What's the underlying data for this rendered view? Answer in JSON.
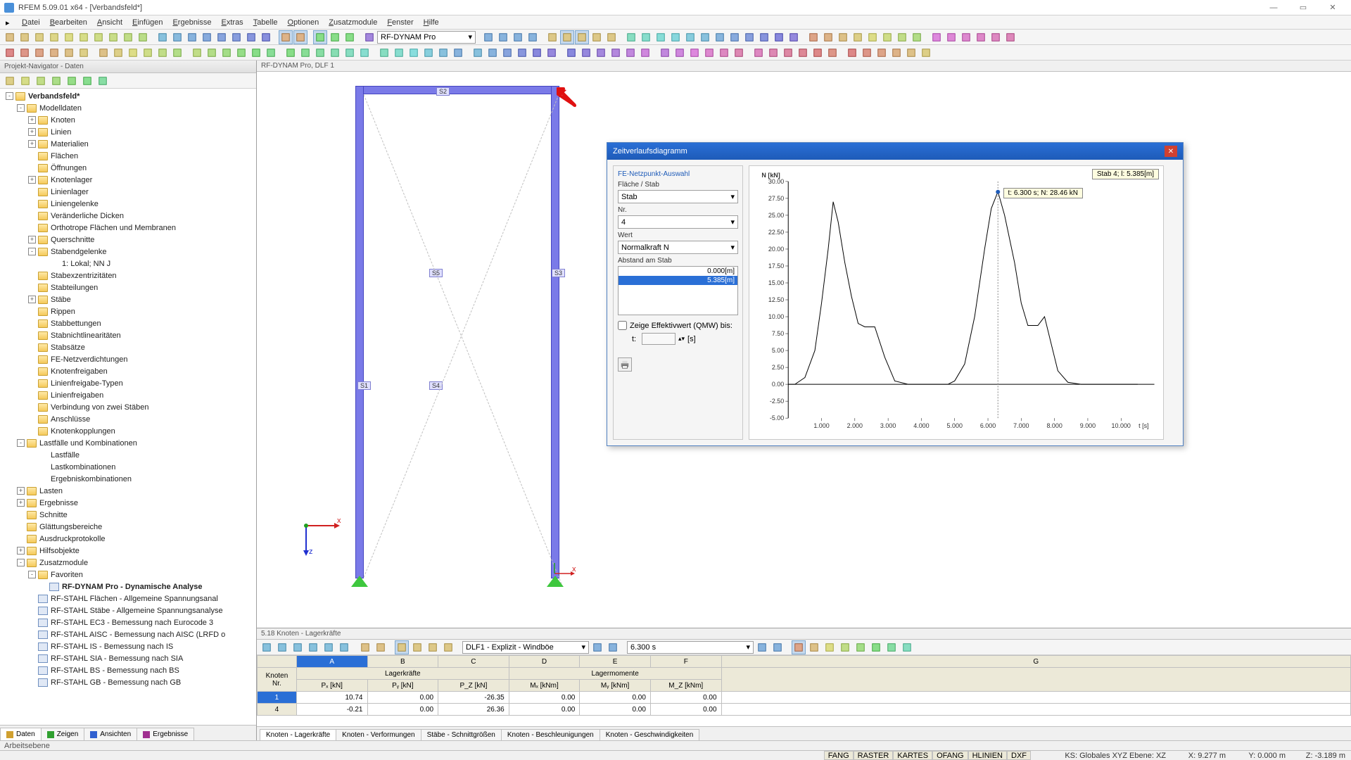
{
  "app": {
    "title": "RFEM 5.09.01 x64 - [Verbandsfeld*]"
  },
  "menu": [
    "Datei",
    "Bearbeiten",
    "Ansicht",
    "Einfügen",
    "Ergebnisse",
    "Extras",
    "Tabelle",
    "Optionen",
    "Zusatzmodule",
    "Fenster",
    "Hilfe"
  ],
  "toolbar1_combo": "RF-DYNAM Pro",
  "navigator": {
    "title": "Projekt-Navigator - Daten",
    "tabs": [
      "Daten",
      "Zeigen",
      "Ansichten",
      "Ergebnisse"
    ],
    "tree": [
      {
        "d": 0,
        "e": "-",
        "i": "f",
        "t": "Verbandsfeld*",
        "b": true
      },
      {
        "d": 1,
        "e": "-",
        "i": "f",
        "t": "Modelldaten"
      },
      {
        "d": 2,
        "e": "+",
        "i": "f",
        "t": "Knoten"
      },
      {
        "d": 2,
        "e": "+",
        "i": "f",
        "t": "Linien"
      },
      {
        "d": 2,
        "e": "+",
        "i": "f",
        "t": "Materialien"
      },
      {
        "d": 2,
        "e": "",
        "i": "f",
        "t": "Flächen"
      },
      {
        "d": 2,
        "e": "",
        "i": "f",
        "t": "Öffnungen"
      },
      {
        "d": 2,
        "e": "+",
        "i": "f",
        "t": "Knotenlager"
      },
      {
        "d": 2,
        "e": "",
        "i": "f",
        "t": "Linienlager"
      },
      {
        "d": 2,
        "e": "",
        "i": "f",
        "t": "Liniengelenke"
      },
      {
        "d": 2,
        "e": "",
        "i": "f",
        "t": "Veränderliche Dicken"
      },
      {
        "d": 2,
        "e": "",
        "i": "f",
        "t": "Orthotrope Flächen und Membranen"
      },
      {
        "d": 2,
        "e": "+",
        "i": "f",
        "t": "Querschnitte"
      },
      {
        "d": 2,
        "e": "-",
        "i": "f",
        "t": "Stabendgelenke"
      },
      {
        "d": 3,
        "e": "",
        "i": "n",
        "t": "1: Lokal; NN J"
      },
      {
        "d": 2,
        "e": "",
        "i": "f",
        "t": "Stabexzentrizitäten"
      },
      {
        "d": 2,
        "e": "",
        "i": "f",
        "t": "Stabteilungen"
      },
      {
        "d": 2,
        "e": "+",
        "i": "f",
        "t": "Stäbe"
      },
      {
        "d": 2,
        "e": "",
        "i": "f",
        "t": "Rippen"
      },
      {
        "d": 2,
        "e": "",
        "i": "f",
        "t": "Stabbettungen"
      },
      {
        "d": 2,
        "e": "",
        "i": "f",
        "t": "Stabnichtlinearitäten"
      },
      {
        "d": 2,
        "e": "",
        "i": "f",
        "t": "Stabsätze"
      },
      {
        "d": 2,
        "e": "",
        "i": "f",
        "t": "FE-Netzverdichtungen"
      },
      {
        "d": 2,
        "e": "",
        "i": "f",
        "t": "Knotenfreigaben"
      },
      {
        "d": 2,
        "e": "",
        "i": "f",
        "t": "Linienfreigabe-Typen"
      },
      {
        "d": 2,
        "e": "",
        "i": "f",
        "t": "Linienfreigaben"
      },
      {
        "d": 2,
        "e": "",
        "i": "f",
        "t": "Verbindung von zwei Stäben"
      },
      {
        "d": 2,
        "e": "",
        "i": "f",
        "t": "Anschlüsse"
      },
      {
        "d": 2,
        "e": "",
        "i": "f",
        "t": "Knotenkopplungen"
      },
      {
        "d": 1,
        "e": "-",
        "i": "f",
        "t": "Lastfälle und Kombinationen"
      },
      {
        "d": 2,
        "e": "",
        "i": "n",
        "t": "Lastfälle"
      },
      {
        "d": 2,
        "e": "",
        "i": "n",
        "t": "Lastkombinationen"
      },
      {
        "d": 2,
        "e": "",
        "i": "n",
        "t": "Ergebniskombinationen"
      },
      {
        "d": 1,
        "e": "+",
        "i": "f",
        "t": "Lasten"
      },
      {
        "d": 1,
        "e": "+",
        "i": "f",
        "t": "Ergebnisse"
      },
      {
        "d": 1,
        "e": "",
        "i": "f",
        "t": "Schnitte"
      },
      {
        "d": 1,
        "e": "",
        "i": "f",
        "t": "Glättungsbereiche"
      },
      {
        "d": 1,
        "e": "",
        "i": "f",
        "t": "Ausdruckprotokolle"
      },
      {
        "d": 1,
        "e": "+",
        "i": "f",
        "t": "Hilfsobjekte"
      },
      {
        "d": 1,
        "e": "-",
        "i": "f",
        "t": "Zusatzmodule"
      },
      {
        "d": 2,
        "e": "-",
        "i": "f",
        "t": "Favoriten"
      },
      {
        "d": 3,
        "e": "",
        "i": "m",
        "t": "RF-DYNAM Pro - Dynamische Analyse",
        "b": true
      },
      {
        "d": 2,
        "e": "",
        "i": "m",
        "t": "RF-STAHL Flächen - Allgemeine Spannungsanal"
      },
      {
        "d": 2,
        "e": "",
        "i": "m",
        "t": "RF-STAHL Stäbe - Allgemeine Spannungsanalyse"
      },
      {
        "d": 2,
        "e": "",
        "i": "m",
        "t": "RF-STAHL EC3 - Bemessung nach Eurocode 3"
      },
      {
        "d": 2,
        "e": "",
        "i": "m",
        "t": "RF-STAHL AISC - Bemessung nach AISC (LRFD o"
      },
      {
        "d": 2,
        "e": "",
        "i": "m",
        "t": "RF-STAHL IS - Bemessung nach IS"
      },
      {
        "d": 2,
        "e": "",
        "i": "m",
        "t": "RF-STAHL SIA - Bemessung nach SIA"
      },
      {
        "d": 2,
        "e": "",
        "i": "m",
        "t": "RF-STAHL BS - Bemessung nach BS"
      },
      {
        "d": 2,
        "e": "",
        "i": "m",
        "t": "RF-STAHL GB - Bemessung nach GB"
      }
    ]
  },
  "model_tab": "RF-DYNAM Pro, DLF 1",
  "beams": {
    "S1": "S1",
    "S2": "S2",
    "S3": "S3",
    "S4": "S4",
    "S5": "S5"
  },
  "dialog": {
    "title": "Zeitverlaufsdiagramm",
    "group": "FE-Netzpunkt-Auswahl",
    "lbl_flaeche": "Fläche / Stab",
    "val_flaeche": "Stab",
    "lbl_nr": "Nr.",
    "val_nr": "4",
    "lbl_wert": "Wert",
    "val_wert": "Normalkraft N",
    "lbl_abstand": "Abstand am Stab",
    "list": [
      "0.000[m]",
      "5.385[m]"
    ],
    "chk_label": "Zeige Effektivwert (QMW) bis:",
    "badge": "Stab 4; l: 5.385[m]",
    "tooltip": "t: 6.300 s; N: 28.46 kN",
    "unit_s": "[s]"
  },
  "chart": {
    "y_label": "N [kN]",
    "x_label": "t [s]",
    "y_min": -5,
    "y_max": 30,
    "y_step": 2.5,
    "x_min": 0,
    "x_max": 11,
    "x_step": 1,
    "x_ticks": [
      "1.000",
      "2.000",
      "3.000",
      "4.000",
      "5.000",
      "6.000",
      "7.000",
      "8.000",
      "9.000",
      "10.000"
    ],
    "marker_x": 6.3,
    "marker_y": 28.46,
    "series": [
      [
        0,
        0
      ],
      [
        0.2,
        0
      ],
      [
        0.5,
        1
      ],
      [
        0.8,
        5
      ],
      [
        1.0,
        12
      ],
      [
        1.2,
        20
      ],
      [
        1.35,
        27
      ],
      [
        1.5,
        24
      ],
      [
        1.7,
        18
      ],
      [
        1.9,
        13
      ],
      [
        2.1,
        9
      ],
      [
        2.3,
        8.5
      ],
      [
        2.6,
        8.5
      ],
      [
        2.9,
        4
      ],
      [
        3.2,
        0.5
      ],
      [
        3.6,
        0
      ],
      [
        4.2,
        0
      ],
      [
        4.8,
        0
      ],
      [
        5.0,
        0.5
      ],
      [
        5.3,
        3
      ],
      [
        5.6,
        10
      ],
      [
        5.9,
        20
      ],
      [
        6.1,
        26
      ],
      [
        6.3,
        28.5
      ],
      [
        6.5,
        25
      ],
      [
        6.8,
        18
      ],
      [
        7.0,
        12
      ],
      [
        7.2,
        8.7
      ],
      [
        7.5,
        8.7
      ],
      [
        7.7,
        10
      ],
      [
        7.9,
        6
      ],
      [
        8.1,
        2
      ],
      [
        8.4,
        0.3
      ],
      [
        8.8,
        0
      ],
      [
        10.5,
        0
      ]
    ],
    "colors": {
      "axis": "#000000",
      "line": "#000000",
      "bg": "#ffffff",
      "marker": "#1e5bb8"
    }
  },
  "bottom": {
    "title": "5.18 Knoten - Lagerkräfte",
    "combo1": "DLF1 - Explizit - Windböe",
    "combo2": "6.300 s",
    "col_letters": [
      "A",
      "B",
      "C",
      "D",
      "E",
      "F",
      "G"
    ],
    "head_knoten": "Knoten",
    "head_nr": "Nr.",
    "group_lager": "Lagerkräfte",
    "group_mom": "Lagermomente",
    "cols": [
      "Pₓ [kN]",
      "Pᵧ [kN]",
      "P_Z [kN]",
      "Mₓ [kNm]",
      "Mᵧ [kNm]",
      "M_Z [kNm]"
    ],
    "rows": [
      {
        "n": "1",
        "v": [
          "10.74",
          "0.00",
          "-26.35",
          "0.00",
          "0.00",
          "0.00"
        ],
        "sel": true
      },
      {
        "n": "4",
        "v": [
          "-0.21",
          "0.00",
          "26.36",
          "0.00",
          "0.00",
          "0.00"
        ]
      }
    ],
    "tabs": [
      "Knoten - Lagerkräfte",
      "Knoten - Verformungen",
      "Stäbe - Schnittgrößen",
      "Knoten - Beschleunigungen",
      "Knoten - Geschwindigkeiten"
    ]
  },
  "status": {
    "line1": "Arbeitsebene",
    "btns": [
      "FANG",
      "RASTER",
      "KARTES",
      "OFANG",
      "HLINIEN",
      "DXF"
    ],
    "ks": "KS: Globales XYZ Ebene: XZ",
    "x": "X: 9.277 m",
    "y": "Y: 0.000 m",
    "z": "Z: -3.189 m"
  }
}
